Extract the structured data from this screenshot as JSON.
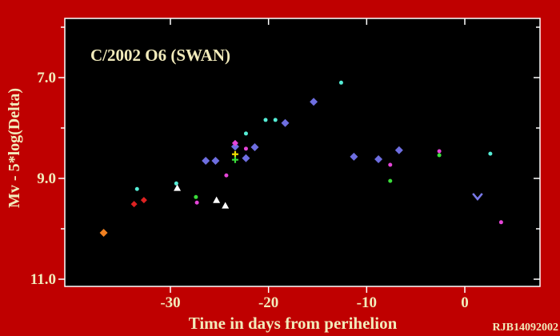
{
  "title": "C/2002 O6 (SWAN)",
  "credit": "RJB14092002",
  "colors": {
    "background": "#BF0000",
    "plot_background": "#000000",
    "frame": "#FFFFFF",
    "text": "#F2EBBB",
    "cyan_marker": "#55EDD6",
    "blue_marker": "#6E6EE0",
    "magenta_marker": "#E545D8",
    "green_marker": "#3BDD3B",
    "yellow_marker": "#EEDD00",
    "red_marker": "#DD2222",
    "orange_marker": "#F08020",
    "white_marker": "#FFFFFF",
    "chevron_marker": "#7878E8"
  },
  "chart_data": {
    "type": "scatter",
    "title": "C/2002 O6 (SWAN)",
    "xlabel": "Time in days from perihelion",
    "ylabel": "Mv - 5*log(Delta)",
    "xlim": [
      -40.8,
      7.7
    ],
    "ylim": [
      11.14,
      5.83
    ],
    "y_axis_inverted": true,
    "grid": false,
    "legend_position": "none",
    "x_major_ticks": [
      {
        "v": -30,
        "label": "-30"
      },
      {
        "v": -20,
        "label": "-20"
      },
      {
        "v": -10,
        "label": "-10"
      },
      {
        "v": 0,
        "label": "0"
      }
    ],
    "y_major_ticks": [
      {
        "v": 7.0,
        "label": "7.0"
      },
      {
        "v": 9.0,
        "label": "9.0"
      },
      {
        "v": 11.0,
        "label": "11.0"
      }
    ],
    "y_minor_ticks": [
      6.0,
      8.0,
      10.0
    ],
    "series": [
      {
        "name": "cyan-dot",
        "marker": "dot",
        "color": "#55EDD6",
        "size": 2.5,
        "points": [
          [
            -12.6,
            7.1
          ],
          [
            -20.3,
            7.84
          ],
          [
            -19.3,
            7.84
          ],
          [
            -22.3,
            8.11
          ],
          [
            -29.4,
            9.1
          ],
          [
            -33.4,
            9.21
          ],
          [
            2.6,
            8.51
          ]
        ]
      },
      {
        "name": "blue-diamond",
        "marker": "diamond",
        "color": "#6E6EE0",
        "size": 5,
        "points": [
          [
            -15.4,
            7.48
          ],
          [
            -18.3,
            7.9
          ],
          [
            -6.7,
            8.44
          ],
          [
            -11.3,
            8.57
          ],
          [
            -8.8,
            8.62
          ],
          [
            -23.4,
            8.37
          ],
          [
            -21.4,
            8.38
          ],
          [
            -22.3,
            8.6
          ],
          [
            -26.4,
            8.65
          ],
          [
            -25.4,
            8.65
          ]
        ]
      },
      {
        "name": "magenta-diamond",
        "marker": "diamond",
        "color": "#E545D8",
        "size": 4,
        "points": [
          [
            -23.4,
            8.3
          ]
        ]
      },
      {
        "name": "magenta-dot",
        "marker": "dot",
        "color": "#E545D8",
        "size": 2.5,
        "points": [
          [
            -22.3,
            8.41
          ],
          [
            -2.6,
            8.46
          ],
          [
            -7.6,
            8.73
          ],
          [
            -24.3,
            8.94
          ],
          [
            -27.3,
            9.48
          ],
          [
            3.7,
            9.87
          ]
        ]
      },
      {
        "name": "green-dot",
        "marker": "dot",
        "color": "#3BDD3B",
        "size": 2.5,
        "points": [
          [
            -2.6,
            8.54
          ],
          [
            -7.6,
            9.05
          ],
          [
            -27.4,
            9.37
          ]
        ]
      },
      {
        "name": "yellow-plus",
        "marker": "plus",
        "color": "#EEDD00",
        "size": 4,
        "points": [
          [
            -23.4,
            8.52
          ]
        ]
      },
      {
        "name": "green-plus",
        "marker": "plus",
        "color": "#3BDD3B",
        "size": 4,
        "points": [
          [
            -23.4,
            8.63
          ]
        ]
      },
      {
        "name": "red-diamond",
        "marker": "diamond",
        "color": "#DD2222",
        "size": 4,
        "points": [
          [
            -33.7,
            9.51
          ],
          [
            -32.7,
            9.43
          ]
        ]
      },
      {
        "name": "orange-diamond",
        "marker": "diamond",
        "color": "#F08020",
        "size": 5,
        "points": [
          [
            -36.8,
            10.08
          ]
        ]
      },
      {
        "name": "white-triangle",
        "marker": "triangle",
        "color": "#FFFFFF",
        "size": 4.5,
        "points": [
          [
            -29.3,
            9.19
          ],
          [
            -25.3,
            9.43
          ],
          [
            -24.4,
            9.54
          ]
        ]
      },
      {
        "name": "blue-chevron-down",
        "marker": "chevron-down",
        "color": "#7878E8",
        "size": 5,
        "points": [
          [
            1.3,
            9.38
          ]
        ]
      }
    ]
  }
}
